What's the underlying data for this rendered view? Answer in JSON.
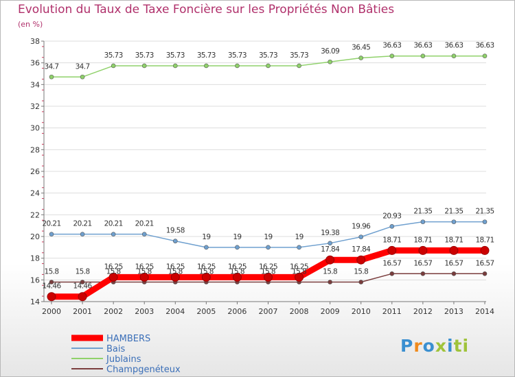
{
  "page": {
    "title": "Evolution du Taux de Taxe Foncière sur les Propriétés Non Bâties",
    "subtitle": "(en %)"
  },
  "logo": {
    "text": "Proxiti",
    "letters": [
      "P",
      "r",
      "o",
      "x",
      "i",
      "ti"
    ]
  },
  "chart_data": {
    "type": "line",
    "title": "Evolution du Taux de Taxe Foncière sur les Propriétés Non Bâties",
    "ylabel": "(en %)",
    "xlabel": "",
    "x": [
      "2000",
      "2001",
      "2002",
      "2003",
      "2004",
      "2005",
      "2006",
      "2007",
      "2008",
      "2009",
      "2010",
      "2011",
      "2012",
      "2013",
      "2014"
    ],
    "ylim": [
      14,
      38
    ],
    "yticks": [
      14,
      16,
      18,
      20,
      22,
      24,
      26,
      28,
      30,
      32,
      34,
      36,
      38
    ],
    "grid": true,
    "legend_position": "bottom-left",
    "series": [
      {
        "name": "HAMBERS",
        "color": "#ff0000",
        "labels": [
          "14.46",
          "14.46",
          "16.25",
          "16.25",
          "16.25",
          "16.25",
          "16.25",
          "16.25",
          "16.25",
          "17.84",
          "17.84",
          "18.71",
          "18.71",
          "18.71",
          "18.71"
        ],
        "values": [
          14.46,
          14.46,
          16.25,
          16.25,
          16.25,
          16.25,
          16.25,
          16.25,
          16.25,
          17.84,
          17.84,
          18.71,
          18.71,
          18.71,
          18.71
        ]
      },
      {
        "name": "Bais",
        "color": "#6fa0cf",
        "labels": [
          "20.21",
          "20.21",
          "20.21",
          "20.21",
          "19.58",
          "19",
          "19",
          "19",
          "19",
          "19.38",
          "19.96",
          "20.93",
          "21.35",
          "21.35",
          "21.35"
        ],
        "values": [
          20.21,
          20.21,
          20.21,
          20.21,
          19.58,
          19,
          19,
          19,
          19,
          19.38,
          19.96,
          20.93,
          21.35,
          21.35,
          21.35
        ]
      },
      {
        "name": "Jublains",
        "color": "#8fd16a",
        "labels": [
          "34.7",
          "34.7",
          "35.73",
          "35.73",
          "35.73",
          "35.73",
          "35.73",
          "35.73",
          "35.73",
          "36.09",
          "36.45",
          "36.63",
          "36.63",
          "36.63",
          "36.63"
        ],
        "values": [
          34.7,
          34.7,
          35.73,
          35.73,
          35.73,
          35.73,
          35.73,
          35.73,
          35.73,
          36.09,
          36.45,
          36.63,
          36.63,
          36.63,
          36.63
        ]
      },
      {
        "name": "Champgenéteux",
        "color": "#7a3d3d",
        "labels": [
          "15.8",
          "15.8",
          "15.8",
          "15.8",
          "15.8",
          "15.8",
          "15.8",
          "15.8",
          "15.8",
          "15.8",
          "15.8",
          "16.57",
          "16.57",
          "16.57",
          "16.57"
        ],
        "values": [
          15.8,
          15.8,
          15.8,
          15.8,
          15.8,
          15.8,
          15.8,
          15.8,
          15.8,
          15.8,
          15.8,
          16.57,
          16.57,
          16.57,
          16.57
        ]
      }
    ]
  }
}
